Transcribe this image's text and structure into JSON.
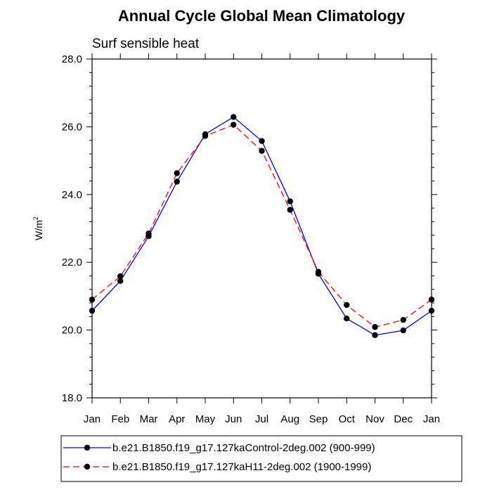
{
  "chart_data": {
    "type": "line",
    "title": "Annual Cycle Global Mean Climatology",
    "subtitle": "Surf sensible heat",
    "ylabel_base": "W/m",
    "ylabel_sup": "2",
    "xlabel": "",
    "ylim": [
      18.0,
      28.0
    ],
    "yticks": [
      18.0,
      20.0,
      22.0,
      24.0,
      26.0,
      28.0
    ],
    "ytick_labels": [
      "18.0",
      "20.0",
      "22.0",
      "24.0",
      "26.0",
      "28.0"
    ],
    "categories": [
      "Jan",
      "Feb",
      "Mar",
      "Apr",
      "May",
      "Jun",
      "Jul",
      "Aug",
      "Sep",
      "Oct",
      "Nov",
      "Dec",
      "Jan"
    ],
    "series": [
      {
        "name": "b.e21.B1850.f19_g17.127kaControl-2deg.002 (900-999)",
        "color": "#0000ff",
        "dash": "solid",
        "values": [
          20.57,
          21.45,
          22.77,
          24.38,
          25.78,
          26.29,
          25.58,
          23.8,
          21.66,
          20.34,
          19.85,
          19.99,
          20.57
        ]
      },
      {
        "name": "b.e21.B1850.f19_g17.127kaH11-2deg.002 (1900-1999)",
        "color": "#ff0000",
        "dash": "dashed",
        "values": [
          20.9,
          21.59,
          22.85,
          24.63,
          25.73,
          26.06,
          25.29,
          23.55,
          21.72,
          20.74,
          20.09,
          20.3,
          20.9
        ]
      }
    ],
    "legend_position": "bottom"
  }
}
